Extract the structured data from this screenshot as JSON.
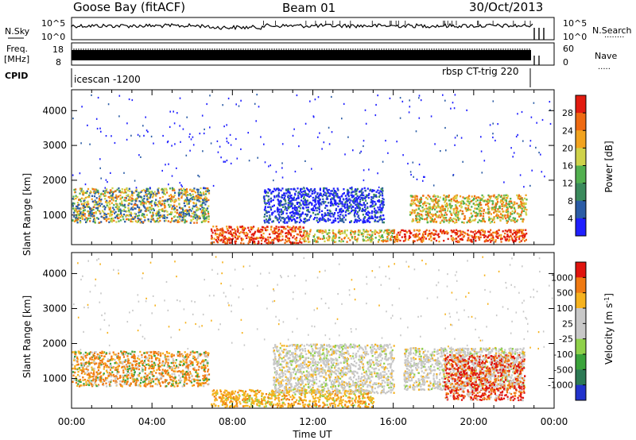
{
  "header": {
    "station": "Goose Bay (fitACF)",
    "beam": "Beam 01",
    "date": "30/Oct/2013"
  },
  "top_strip": {
    "left_labels": {
      "nsky": "N.Sky",
      "freq": "Freq.",
      "mhz": "[MHz]",
      "cpid": "CPID"
    },
    "right_labels": {
      "nsearch": "N.Search",
      "nave": "Nave"
    },
    "nsky_ticks": [
      "10^5",
      "10^0"
    ],
    "nsearch_ticks": [
      "10^5",
      "10^0"
    ],
    "freq_ticks": [
      "18",
      "8"
    ],
    "nave_ticks": [
      "60",
      "0"
    ],
    "cpid_left": "icescan -1200",
    "cpid_right": "rbsp CT-trig 220"
  },
  "chart_data": [
    {
      "type": "heatmap",
      "name": "power_panel",
      "ylabel": "Slant Range [km]",
      "xlabel": "",
      "ylim": [
        150,
        4600
      ],
      "yticks": [
        "1000",
        "2000",
        "3000",
        "4000"
      ],
      "xlim_hours": [
        0,
        24
      ],
      "colorbar_label": "Power [dB]",
      "colorbar_ticks": [
        "4",
        "8",
        "12",
        "16",
        "20",
        "24",
        "28"
      ],
      "colorbar_colors": [
        "#1f1fff",
        "#2b5ca6",
        "#3a8a5c",
        "#52b04f",
        "#cfd24a",
        "#f2a31f",
        "#ef6a12",
        "#e21b10"
      ],
      "echo_regions": [
        {
          "t0": 0.0,
          "t1": 6.8,
          "r0": 800,
          "r1": 1800,
          "level": "mixed-high"
        },
        {
          "t0": 6.9,
          "t1": 11.5,
          "r0": 200,
          "r1": 700,
          "level": "high"
        },
        {
          "t0": 11.5,
          "t1": 16.0,
          "r0": 250,
          "r1": 600,
          "level": "mid"
        },
        {
          "t0": 9.5,
          "t1": 15.5,
          "r0": 800,
          "r1": 1800,
          "level": "low"
        },
        {
          "t0": 16.0,
          "t1": 22.6,
          "r0": 250,
          "r1": 600,
          "level": "high"
        },
        {
          "t0": 16.8,
          "t1": 22.6,
          "r0": 800,
          "r1": 1600,
          "level": "mid"
        }
      ]
    },
    {
      "type": "heatmap",
      "name": "velocity_panel",
      "ylabel": "Slant Range [km]",
      "xlabel": "Time UT",
      "ylim": [
        150,
        4600
      ],
      "yticks": [
        "1000",
        "2000",
        "3000",
        "4000"
      ],
      "xticks": [
        "00:00",
        "04:00",
        "08:00",
        "12:00",
        "16:00",
        "20:00",
        "00:00"
      ],
      "xlim_hours": [
        0,
        24
      ],
      "colorbar_label": "Velocity [m s^-1]",
      "colorbar_ticks": [
        "1000",
        "500",
        "100",
        "25",
        "-25",
        "-100",
        "-500",
        "-1000"
      ],
      "colorbar_colors": [
        "#2233cc",
        "#2d7a55",
        "#3aa33a",
        "#8fd14a",
        "#c8c8c8",
        "#c8c8c8",
        "#f6b21e",
        "#f07a12",
        "#e0140e"
      ],
      "echo_regions": [
        {
          "t0": 0.0,
          "t1": 6.8,
          "r0": 800,
          "r1": 1800,
          "level": "orange-green"
        },
        {
          "t0": 6.9,
          "t1": 15.0,
          "r0": 200,
          "r1": 700,
          "level": "orange"
        },
        {
          "t0": 10.0,
          "t1": 16.0,
          "r0": 600,
          "r1": 2000,
          "level": "grey"
        },
        {
          "t0": 16.5,
          "t1": 22.5,
          "r0": 700,
          "r1": 1900,
          "level": "grey"
        },
        {
          "t0": 18.5,
          "t1": 22.5,
          "r0": 400,
          "r1": 1700,
          "level": "red-orange"
        }
      ]
    }
  ]
}
